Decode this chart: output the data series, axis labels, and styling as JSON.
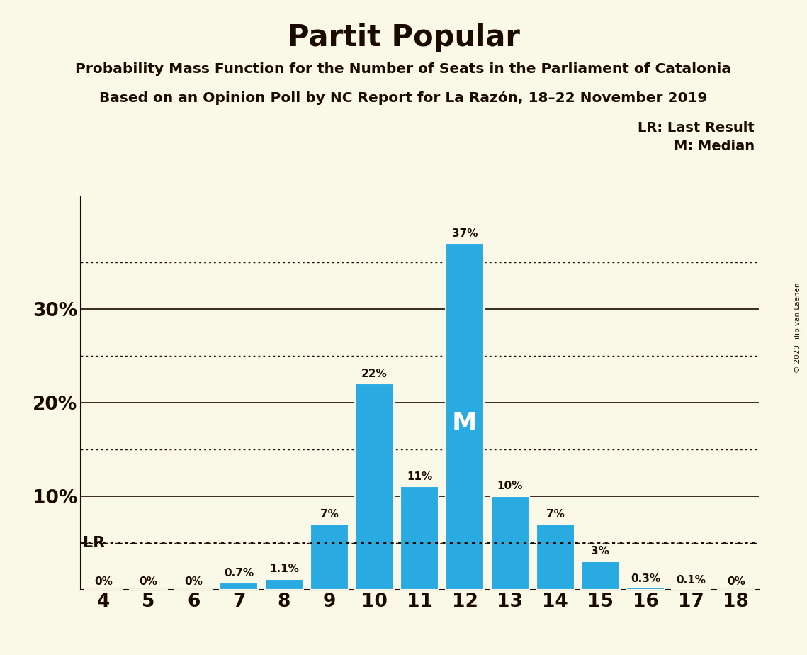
{
  "title": "Partit Popular",
  "subtitle1": "Probability Mass Function for the Number of Seats in the Parliament of Catalonia",
  "subtitle2": "Based on an Opinion Poll by NC Report for La Razón, 18–22 November 2019",
  "seats": [
    4,
    5,
    6,
    7,
    8,
    9,
    10,
    11,
    12,
    13,
    14,
    15,
    16,
    17,
    18
  ],
  "probabilities": [
    0.0,
    0.0,
    0.0,
    0.7,
    1.1,
    7.0,
    22.0,
    11.0,
    37.0,
    10.0,
    7.0,
    3.0,
    0.3,
    0.1,
    0.0
  ],
  "bar_color": "#29abe2",
  "bar_edge_color": "#faf8e8",
  "background_color": "#faf8e8",
  "text_color": "#1a0a00",
  "bar_labels": [
    "0%",
    "0%",
    "0%",
    "0.7%",
    "1.1%",
    "7%",
    "22%",
    "11%",
    "37%",
    "10%",
    "7%",
    "3%",
    "0.3%",
    "0.1%",
    "0%"
  ],
  "lr_value": 5.0,
  "median_seat": 12,
  "ylim": [
    0,
    42
  ],
  "copyright": "© 2020 Filip van Laenen",
  "legend_lr": "LR: Last Result",
  "legend_m": "M: Median",
  "solid_lines": [
    10.0,
    20.0,
    30.0
  ],
  "dotted_lines": [
    5.0,
    15.0,
    25.0,
    35.0
  ]
}
